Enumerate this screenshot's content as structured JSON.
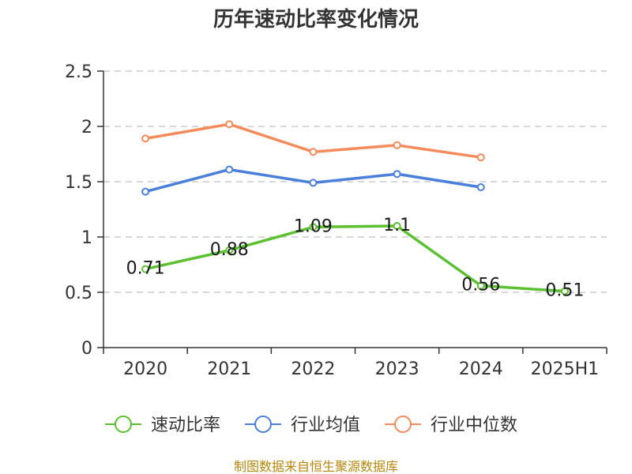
{
  "chart_data": {
    "type": "line",
    "title": "历年速动比率变化情况",
    "categories": [
      "2020",
      "2021",
      "2022",
      "2023",
      "2024",
      "2025H1"
    ],
    "ylim": [
      0,
      2.5
    ],
    "yticks": [
      "0",
      "0.5",
      "1",
      "1.5",
      "2",
      "2.5"
    ],
    "grid": true,
    "legend_position": "bottom",
    "series": [
      {
        "name": "速动比率",
        "color": "#5cc130",
        "values": [
          0.71,
          0.88,
          1.09,
          1.1,
          0.56,
          0.51
        ],
        "labels": [
          "0.71",
          "0.88",
          "1.09",
          "1.1",
          "0.56",
          "0.51"
        ]
      },
      {
        "name": "行业均值",
        "color": "#4a7fdb",
        "values": [
          1.41,
          1.61,
          1.49,
          1.57,
          1.45,
          null
        ]
      },
      {
        "name": "行业中位数",
        "color": "#f58b5a",
        "values": [
          1.89,
          2.02,
          1.77,
          1.83,
          1.72,
          null
        ]
      }
    ],
    "source": "制图数据来自恒生聚源数据库"
  }
}
